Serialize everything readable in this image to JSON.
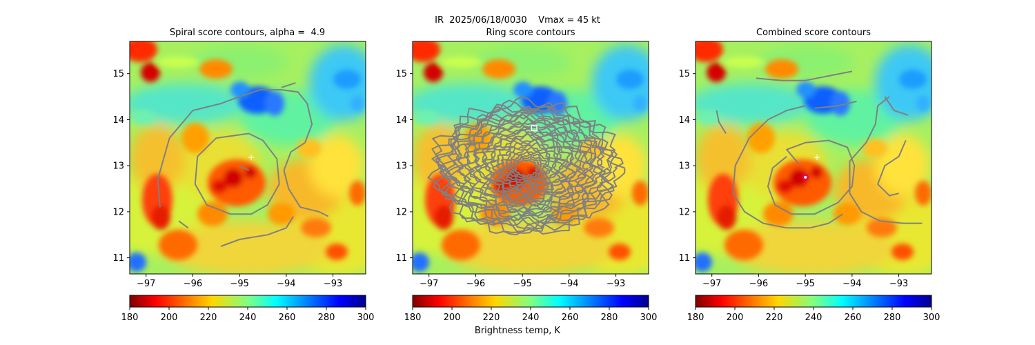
{
  "figure": {
    "suptitle": "IR  2025/06/18/0030    Vmax = 45 kt",
    "colorbar_label": "Brightness temp, K"
  },
  "chart_data": [
    {
      "type": "heatmap",
      "title": "Spiral score contours, alpha =  4.9",
      "x_ticks": [
        -97,
        -96,
        -95,
        -94,
        -93
      ],
      "y_ticks": [
        11,
        12,
        13,
        14,
        15
      ],
      "xlim": [
        -97.35,
        -92.3
      ],
      "ylim": [
        10.65,
        15.7
      ],
      "colorbar": {
        "ticks": [
          180,
          200,
          220,
          240,
          260,
          280,
          300
        ],
        "range": [
          180,
          300
        ],
        "cmap": "jet_r"
      },
      "markers": [
        {
          "kind": "cross",
          "lon": -94.75,
          "lat": 13.18,
          "color": "#ffffff"
        }
      ],
      "contours": [
        [
          [
            -95.0,
            13.0
          ],
          [
            -94.9,
            12.95
          ],
          [
            -94.8,
            12.9
          ]
        ],
        [
          [
            -94.8,
            13.7
          ],
          [
            -95.5,
            13.6
          ],
          [
            -95.9,
            13.2
          ],
          [
            -95.95,
            12.6
          ],
          [
            -95.7,
            12.15
          ],
          [
            -95.2,
            11.95
          ],
          [
            -94.75,
            11.95
          ],
          [
            -94.4,
            12.15
          ],
          [
            -94.15,
            12.6
          ],
          [
            -94.2,
            13.15
          ],
          [
            -94.5,
            13.55
          ],
          [
            -94.8,
            13.7
          ]
        ],
        [
          [
            -96.7,
            12.1
          ],
          [
            -96.75,
            12.7
          ],
          [
            -96.5,
            13.6
          ],
          [
            -96.0,
            14.2
          ],
          [
            -95.4,
            14.35
          ],
          [
            -95.0,
            14.5
          ],
          [
            -94.55,
            14.65
          ],
          [
            -94.1,
            14.65
          ],
          [
            -93.75,
            14.6
          ],
          [
            -93.55,
            14.35
          ],
          [
            -93.45,
            13.9
          ],
          [
            -93.6,
            13.5
          ],
          [
            -93.9,
            13.3
          ],
          [
            -94.05,
            12.9
          ],
          [
            -93.95,
            12.5
          ],
          [
            -93.7,
            12.1
          ],
          [
            -93.3,
            12.0
          ],
          [
            -93.1,
            11.9
          ]
        ],
        [
          [
            -96.3,
            11.8
          ],
          [
            -96.1,
            11.65
          ]
        ],
        [
          [
            -93.85,
            11.9
          ],
          [
            -94.0,
            11.65
          ],
          [
            -94.4,
            11.5
          ],
          [
            -95.0,
            11.4
          ],
          [
            -95.4,
            11.25
          ]
        ],
        [
          [
            -93.8,
            14.8
          ],
          [
            -93.95,
            14.75
          ],
          [
            -94.1,
            14.7
          ]
        ]
      ]
    },
    {
      "type": "heatmap",
      "title": "Ring score contours",
      "x_ticks": [
        -97,
        -96,
        -95,
        -94,
        -93
      ],
      "y_ticks": [
        11,
        12,
        13,
        14,
        15
      ],
      "xlim": [
        -97.35,
        -92.3
      ],
      "ylim": [
        10.65,
        15.7
      ],
      "colorbar": {
        "ticks": [
          180,
          200,
          220,
          240,
          260,
          280,
          300
        ],
        "range": [
          180,
          300
        ],
        "cmap": "jet_r"
      },
      "markers": [
        {
          "kind": "square",
          "lon": -94.75,
          "lat": 13.82,
          "color": "#ffffff"
        }
      ],
      "ring_region": {
        "center_lon": -94.92,
        "center_lat": 12.95,
        "radius_lon": 1.95,
        "radius_lat": 1.4
      }
    },
    {
      "type": "heatmap",
      "title": "Combined score contours",
      "x_ticks": [
        -97,
        -96,
        -95,
        -94,
        -93
      ],
      "y_ticks": [
        11,
        12,
        13,
        14,
        15
      ],
      "xlim": [
        -97.35,
        -92.3
      ],
      "ylim": [
        10.65,
        15.7
      ],
      "colorbar": {
        "ticks": [
          180,
          200,
          220,
          240,
          260,
          280,
          300
        ],
        "range": [
          180,
          300
        ],
        "cmap": "jet_r"
      },
      "markers": [
        {
          "kind": "cross",
          "lon": -94.75,
          "lat": 13.18,
          "color": "#ffffff"
        },
        {
          "kind": "circle",
          "lon": -95.0,
          "lat": 12.75,
          "color": "#e0007a"
        }
      ],
      "contours": [
        [
          [
            -95.15,
            13.05
          ],
          [
            -95.4,
            13.35
          ],
          [
            -95.0,
            13.5
          ],
          [
            -94.5,
            13.55
          ],
          [
            -94.1,
            13.4
          ],
          [
            -93.95,
            13.0
          ],
          [
            -94.0,
            12.55
          ],
          [
            -94.3,
            12.2
          ],
          [
            -94.8,
            11.95
          ],
          [
            -95.3,
            11.95
          ],
          [
            -95.65,
            12.15
          ],
          [
            -95.8,
            12.55
          ],
          [
            -95.7,
            12.95
          ],
          [
            -95.4,
            13.2
          ]
        ],
        [
          [
            -93.2,
            14.5
          ],
          [
            -93.45,
            14.3
          ],
          [
            -93.5,
            13.9
          ],
          [
            -93.7,
            13.5
          ],
          [
            -94.05,
            13.1
          ],
          [
            -94.05,
            12.4
          ],
          [
            -93.8,
            12.0
          ],
          [
            -93.4,
            11.8
          ],
          [
            -92.9,
            11.75
          ],
          [
            -92.5,
            11.75
          ]
        ],
        [
          [
            -95.0,
            14.3
          ],
          [
            -95.4,
            14.2
          ],
          [
            -95.8,
            14.0
          ],
          [
            -96.2,
            13.6
          ],
          [
            -96.5,
            13.0
          ],
          [
            -96.55,
            12.4
          ],
          [
            -96.3,
            12.0
          ],
          [
            -95.9,
            11.75
          ],
          [
            -95.4,
            11.65
          ],
          [
            -94.9,
            11.65
          ],
          [
            -94.5,
            11.75
          ],
          [
            -94.2,
            11.95
          ]
        ],
        [
          [
            -94.8,
            14.25
          ],
          [
            -94.3,
            14.3
          ],
          [
            -93.9,
            14.4
          ]
        ],
        [
          [
            -96.05,
            14.9
          ],
          [
            -95.5,
            14.85
          ],
          [
            -95.0,
            14.85
          ],
          [
            -94.5,
            14.95
          ],
          [
            -94.0,
            15.05
          ]
        ],
        [
          [
            -96.7,
            13.7
          ],
          [
            -96.85,
            13.95
          ],
          [
            -96.9,
            14.2
          ]
        ],
        [
          [
            -93.3,
            14.5
          ],
          [
            -93.1,
            14.2
          ],
          [
            -92.8,
            14.1
          ]
        ],
        [
          [
            -92.85,
            13.55
          ],
          [
            -93.0,
            13.2
          ],
          [
            -93.3,
            13.0
          ],
          [
            -93.45,
            12.6
          ],
          [
            -93.2,
            12.35
          ],
          [
            -93.0,
            12.4
          ]
        ]
      ]
    }
  ]
}
